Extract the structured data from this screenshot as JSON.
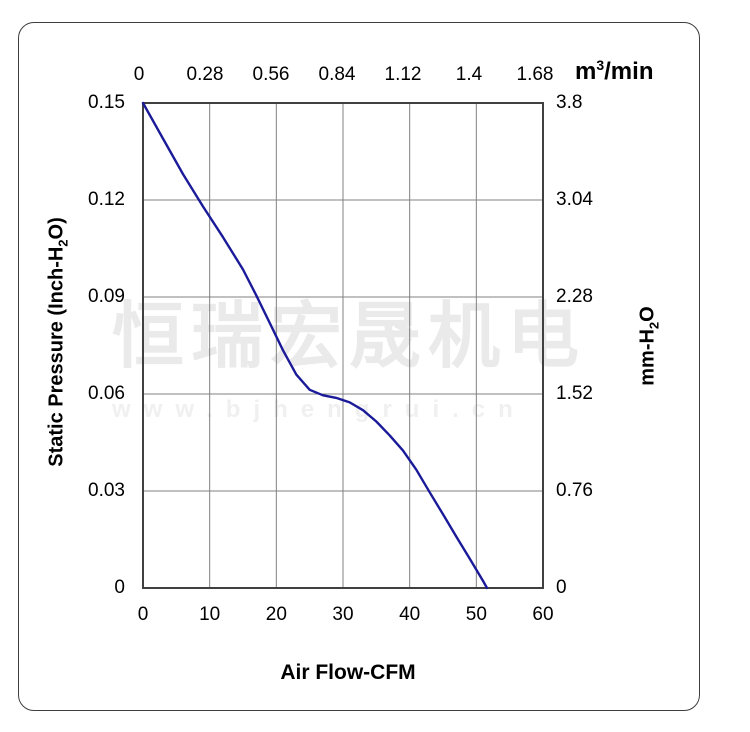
{
  "watermark": {
    "company": "恒瑞宏晟机电",
    "url": "www.bjhengrui.cn"
  },
  "axes": {
    "top": {
      "unit_pre": "m",
      "unit_sup": "3",
      "unit_post": "/min",
      "ticks": [
        "0",
        "0.28",
        "0.56",
        "0.84",
        "1.12",
        "1.4",
        "1.68"
      ]
    },
    "bottom": {
      "title": "Air Flow-CFM",
      "ticks": [
        "0",
        "10",
        "20",
        "30",
        "40",
        "50",
        "60"
      ]
    },
    "left": {
      "title_pre": "Static Pressure (Inch-H",
      "title_sub": "2",
      "title_post": "O)",
      "ticks": [
        "0.15",
        "0.12",
        "0.09",
        "0.06",
        "0.03",
        "0"
      ]
    },
    "right": {
      "title_pre": "mm-H",
      "title_sub": "2",
      "title_post": "O",
      "ticks": [
        "3.8",
        "3.04",
        "2.28",
        "1.52",
        "0.76",
        "0"
      ]
    }
  },
  "colors": {
    "curve": "#1b1b9a",
    "grid": "#808080",
    "plot_border": "#404040",
    "frame_border": "#3e3e3e",
    "watermark_cn": "#eaeaea",
    "watermark_url": "#f0f0f0"
  },
  "chart_data": {
    "type": "line",
    "title": "Fan static pressure vs air flow performance curve",
    "xlabel": "Air Flow-CFM",
    "ylabel_left": "Static Pressure (Inch-H2O)",
    "ylabel_right": "mm-H2O",
    "x_top_unit": "m3/min",
    "xlim": [
      0,
      60
    ],
    "ylim_left": [
      0,
      0.15
    ],
    "ylim_right": [
      0,
      3.8
    ],
    "x_ticks_bottom_cfm": [
      0,
      10,
      20,
      30,
      40,
      50,
      60
    ],
    "x_ticks_top_m3min": [
      0,
      0.28,
      0.56,
      0.84,
      1.12,
      1.4,
      1.68
    ],
    "y_ticks_left_inchH2O": [
      0.15,
      0.12,
      0.09,
      0.06,
      0.03,
      0
    ],
    "y_ticks_right_mmH2O": [
      3.8,
      3.04,
      2.28,
      1.52,
      0.76,
      0
    ],
    "grid": true,
    "legend": "none",
    "series": [
      {
        "name": "static-pressure-curve",
        "units": {
          "x": "CFM",
          "y": "Inch-H2O"
        },
        "points": [
          [
            0,
            0.15
          ],
          [
            3,
            0.139
          ],
          [
            6,
            0.128
          ],
          [
            9,
            0.118
          ],
          [
            12,
            0.1085
          ],
          [
            15,
            0.0985
          ],
          [
            17,
            0.0905
          ],
          [
            19,
            0.082
          ],
          [
            21,
            0.0735
          ],
          [
            23,
            0.066
          ],
          [
            25,
            0.0613
          ],
          [
            27,
            0.0596
          ],
          [
            29,
            0.0588
          ],
          [
            31,
            0.0574
          ],
          [
            33,
            0.055
          ],
          [
            35,
            0.0515
          ],
          [
            37,
            0.0472
          ],
          [
            39,
            0.0425
          ],
          [
            41,
            0.0366
          ],
          [
            43,
            0.0296
          ],
          [
            45,
            0.0228
          ],
          [
            47,
            0.0159
          ],
          [
            49,
            0.0091
          ],
          [
            51,
            0.0022
          ],
          [
            51.6,
            0
          ]
        ]
      }
    ]
  }
}
